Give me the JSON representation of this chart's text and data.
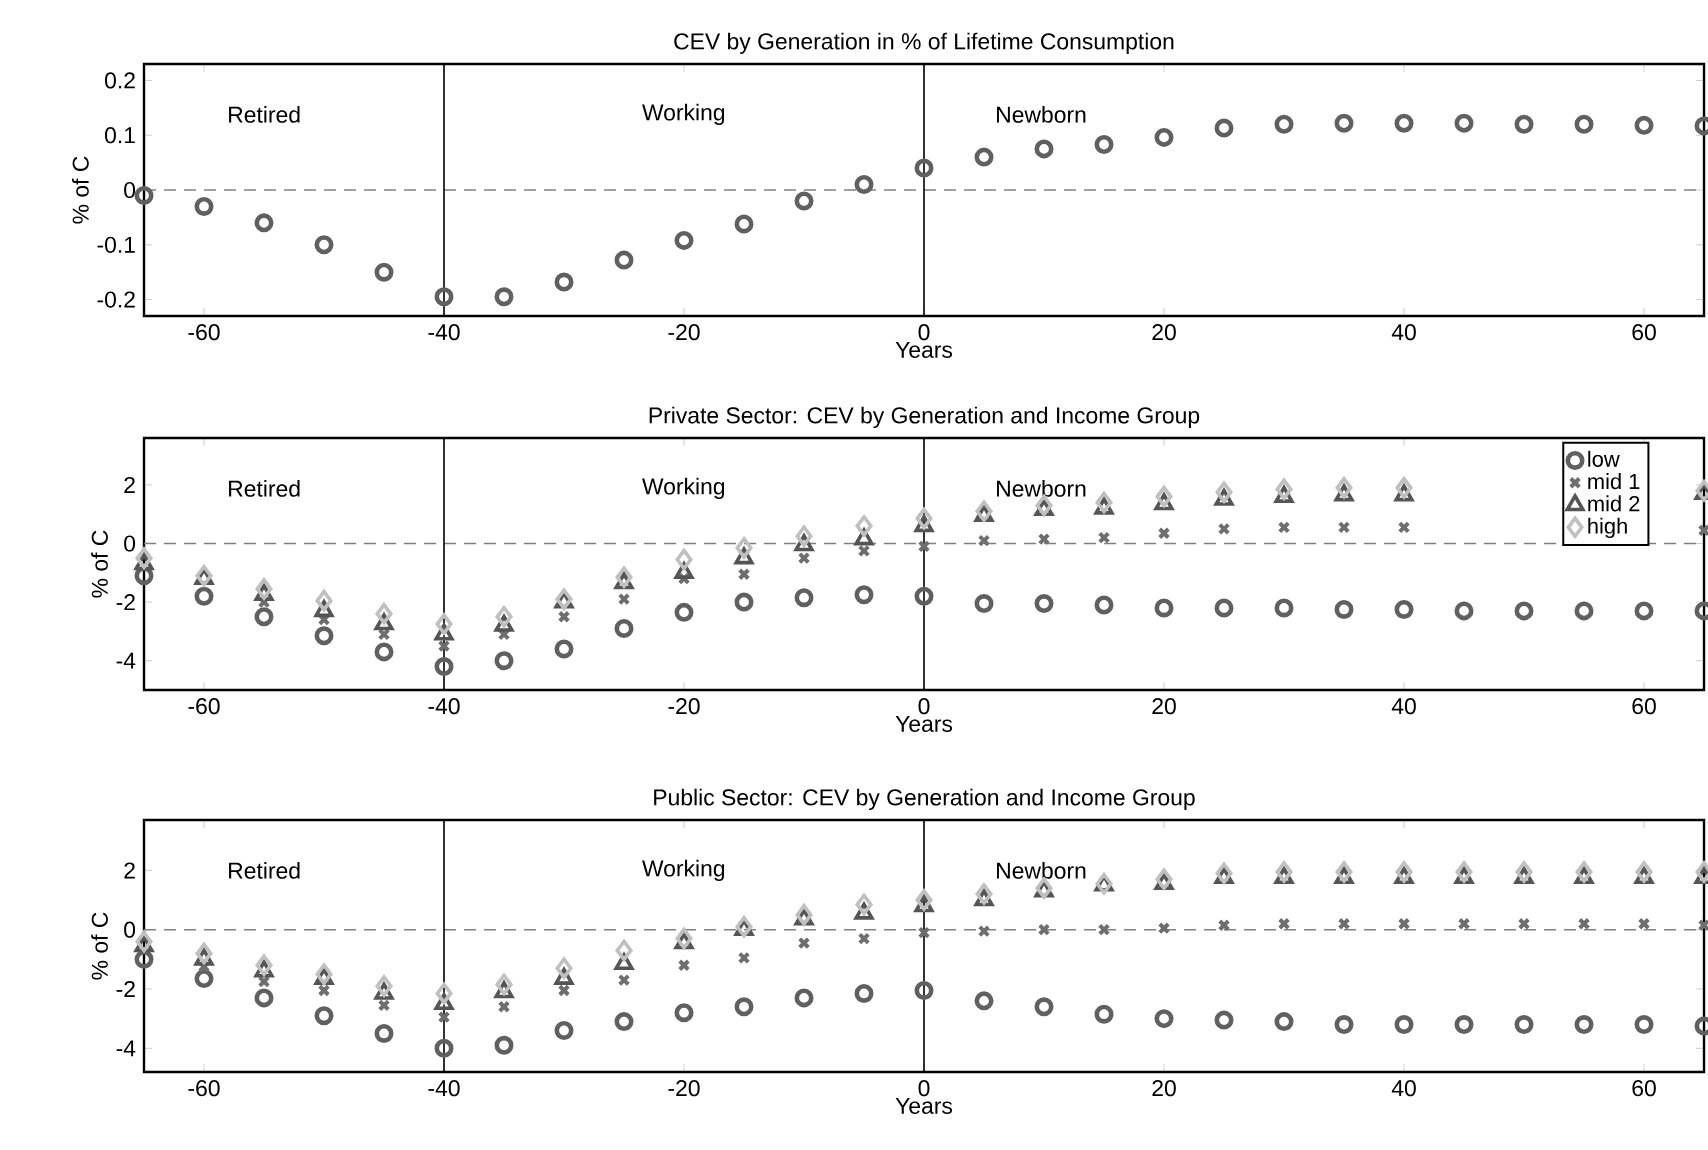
{
  "chart_data": [
    {
      "type": "scatter",
      "title": "CEV by Generation in % of Lifetime Consumption",
      "xlabel": "Years",
      "ylabel": "% of C",
      "x": [
        -65,
        -60,
        -55,
        -50,
        -45,
        -40,
        -35,
        -30,
        -25,
        -20,
        -15,
        -10,
        -5,
        0,
        5,
        10,
        15,
        20,
        25,
        30,
        35,
        40,
        45,
        50,
        55,
        60,
        65
      ],
      "series": [
        {
          "color": "#606060",
          "marker": "circle",
          "values": [
            -0.01,
            -0.03,
            -0.06,
            -0.1,
            -0.15,
            -0.195,
            -0.195,
            -0.168,
            -0.128,
            -0.092,
            -0.062,
            -0.02,
            0.01,
            0.04,
            0.06,
            0.075,
            0.083,
            0.096,
            0.113,
            0.12,
            0.122,
            0.122,
            0.122,
            0.12,
            0.12,
            0.118,
            0.117
          ]
        }
      ],
      "xlim": [
        -65,
        65
      ],
      "ylim": [
        -0.23,
        0.23
      ],
      "xticks": [
        -60,
        -40,
        -20,
        0,
        20,
        40,
        60
      ],
      "yticks": [
        -0.2,
        -0.1,
        0,
        0.1,
        0.2
      ],
      "ref_lines": [
        {
          "axis": "y",
          "value": 0,
          "color": "#808080",
          "line_style": "dashed"
        },
        {
          "axis": "x",
          "value": -40,
          "color": "#000000",
          "line_style": "solid"
        },
        {
          "axis": "x",
          "value": 0,
          "color": "#000000",
          "line_style": "solid"
        }
      ],
      "annotations": [
        "Retired",
        "Working",
        "Newborn"
      ]
    },
    {
      "type": "scatter",
      "title": "Private Sector: CEV by Generation and Income Group",
      "xlabel": "Years",
      "ylabel": "% of C",
      "x": [
        -65,
        -60,
        -55,
        -50,
        -45,
        -40,
        -35,
        -30,
        -25,
        -20,
        -15,
        -10,
        -5,
        0,
        5,
        10,
        15,
        20,
        25,
        30,
        35,
        40,
        45,
        50,
        55,
        60,
        65
      ],
      "series": [
        {
          "name": "low",
          "color": "#606060",
          "marker": "circle",
          "values": [
            -1.1,
            -1.8,
            -2.5,
            -3.15,
            -3.7,
            -4.2,
            -4.0,
            -3.6,
            -2.9,
            -2.35,
            -2.0,
            -1.85,
            -1.75,
            -1.8,
            -2.05,
            -2.05,
            -2.1,
            -2.2,
            -2.2,
            -2.2,
            -2.25,
            -2.25,
            -2.3,
            -2.3,
            -2.3,
            -2.3,
            -2.3
          ]
        },
        {
          "name": "mid 1",
          "color": "#6e6e6e",
          "marker": "cross",
          "values": [
            null,
            null,
            -2.0,
            -2.6,
            -3.1,
            -3.5,
            -3.1,
            -2.5,
            -1.9,
            -1.2,
            -1.05,
            -0.5,
            -0.25,
            -0.1,
            0.1,
            0.15,
            0.2,
            0.35,
            0.5,
            0.55,
            0.55,
            0.55,
            null,
            null,
            null,
            null,
            0.45
          ]
        },
        {
          "name": "mid 2",
          "color": "#555555",
          "marker": "triangle",
          "values": [
            -0.7,
            -1.2,
            -1.75,
            -2.3,
            -2.75,
            -3.1,
            -2.8,
            -2.0,
            -1.35,
            -1.0,
            -0.5,
            -0.05,
            0.15,
            0.6,
            0.95,
            1.15,
            1.2,
            1.35,
            1.5,
            1.6,
            1.65,
            1.65,
            null,
            null,
            null,
            null,
            1.7
          ]
        },
        {
          "name": "high",
          "color": "#c0c0c0",
          "marker": "diamond",
          "values": [
            -0.5,
            -1.1,
            -1.55,
            -1.95,
            -2.4,
            -2.75,
            -2.5,
            -1.9,
            -1.15,
            -0.55,
            -0.15,
            0.25,
            0.6,
            0.85,
            1.1,
            1.3,
            1.4,
            1.6,
            1.75,
            1.85,
            1.9,
            1.9,
            null,
            null,
            null,
            null,
            1.8
          ]
        }
      ],
      "xlim": [
        -65,
        65
      ],
      "ylim": [
        -5,
        3.6
      ],
      "xticks": [
        -60,
        -40,
        -20,
        0,
        20,
        40,
        60
      ],
      "yticks": [
        -4,
        -2,
        0,
        2
      ],
      "legend": "top right",
      "ref_lines": [
        {
          "axis": "y",
          "value": 0,
          "color": "#808080",
          "line_style": "dashed"
        },
        {
          "axis": "x",
          "value": -40,
          "color": "#000000",
          "line_style": "solid"
        },
        {
          "axis": "x",
          "value": 0,
          "color": "#000000",
          "line_style": "solid"
        }
      ],
      "annotations": [
        "Retired",
        "Working",
        "Newborn"
      ]
    },
    {
      "type": "scatter",
      "title": "Public Sector: CEV by Generation and Income Group",
      "xlabel": "Years",
      "ylabel": "% of C",
      "x": [
        -65,
        -60,
        -55,
        -50,
        -45,
        -40,
        -35,
        -30,
        -25,
        -20,
        -15,
        -10,
        -5,
        0,
        5,
        10,
        15,
        20,
        25,
        30,
        35,
        40,
        45,
        50,
        55,
        60,
        65
      ],
      "series": [
        {
          "color": "#606060",
          "marker": "circle",
          "values": [
            -1.0,
            -1.65,
            -2.3,
            -2.9,
            -3.5,
            -4.0,
            -3.9,
            -3.4,
            -3.1,
            -2.8,
            -2.6,
            -2.3,
            -2.15,
            -2.05,
            -2.4,
            -2.6,
            -2.85,
            -3.0,
            -3.05,
            -3.1,
            -3.2,
            -3.2,
            -3.2,
            -3.2,
            -3.2,
            -3.2,
            -3.25
          ]
        },
        {
          "color": "#6e6e6e",
          "marker": "cross",
          "values": [
            null,
            -1.25,
            -1.75,
            -2.05,
            -2.55,
            -2.95,
            -2.6,
            -2.05,
            -1.7,
            -1.2,
            -0.95,
            -0.45,
            -0.3,
            -0.1,
            -0.05,
            0,
            0,
            0.05,
            0.15,
            0.2,
            0.2,
            0.2,
            0.2,
            0.2,
            0.2,
            0.2,
            0.15
          ]
        },
        {
          "color": "#555555",
          "marker": "triangle",
          "values": [
            -0.55,
            -1.0,
            -1.4,
            -1.65,
            -2.15,
            -2.5,
            -2.1,
            -1.65,
            -1.15,
            -0.45,
            0,
            0.35,
            0.55,
            0.8,
            1.0,
            1.3,
            1.5,
            1.55,
            1.75,
            1.75,
            1.75,
            1.75,
            1.75,
            1.75,
            1.75,
            1.75,
            1.75
          ]
        },
        {
          "color": "#c0c0c0",
          "marker": "diamond",
          "values": [
            -0.4,
            -0.8,
            -1.2,
            -1.5,
            -1.9,
            -2.15,
            -1.85,
            -1.3,
            -0.7,
            -0.3,
            0.1,
            0.5,
            0.85,
            1.0,
            1.2,
            1.4,
            1.55,
            1.7,
            1.9,
            1.95,
            1.95,
            1.95,
            1.95,
            1.95,
            1.95,
            1.95,
            1.95
          ]
        }
      ],
      "xlim": [
        -65,
        65
      ],
      "ylim": [
        -4.8,
        3.7
      ],
      "xticks": [
        -60,
        -40,
        -20,
        0,
        20,
        40,
        60
      ],
      "yticks": [
        -4,
        -2,
        0,
        2
      ],
      "ref_lines": [
        {
          "axis": "y",
          "value": 0,
          "color": "#808080",
          "line_style": "dashed"
        },
        {
          "axis": "x",
          "value": -40,
          "color": "#000000",
          "line_style": "solid"
        },
        {
          "axis": "x",
          "value": 0,
          "color": "#000000",
          "line_style": "solid"
        }
      ],
      "annotations": [
        "Retired",
        "Working",
        "Newborn"
      ]
    }
  ]
}
